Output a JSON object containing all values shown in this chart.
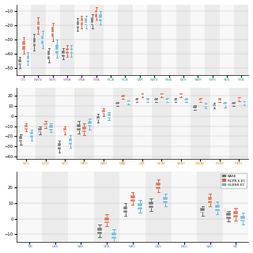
{
  "panel1": {
    "regions": [
      "GIC",
      "NWN",
      "NEN",
      "WNA",
      "CNA",
      "ENA",
      "NCA",
      "SCA",
      "CAR",
      "NWS",
      "NSA",
      "NES",
      "SAM",
      "SWS",
      "SES",
      "SSA"
    ],
    "ylim": [
      -55,
      -5
    ],
    "yticks": [
      -50.0,
      -40.0,
      -30.0,
      -20.0,
      -10.0
    ],
    "label_colors": [
      "#aa55cc",
      "#aa55cc",
      "#aa55cc",
      "#aa55cc",
      "#aa55cc",
      "#aa55cc",
      "#22aa88",
      "#22aa88",
      "#22aa88",
      "#22aa88",
      "#22aa88",
      "#22aa88",
      "#22aa88",
      "#22aa88",
      "#22aa88",
      "#22aa88"
    ],
    "base_stats": [
      [
        -48,
        -46,
        -44,
        -50,
        -42
      ],
      [
        -35,
        -32,
        -29,
        -38,
        -26
      ],
      [
        -44,
        -41,
        -38,
        -46,
        -36
      ],
      [
        -42,
        -40,
        -38,
        -44,
        -36
      ],
      [
        -22,
        -20,
        -17,
        -24,
        -15
      ],
      [
        -20,
        -18,
        -14,
        -22,
        -12
      ],
      null,
      null,
      null,
      null,
      null,
      null,
      null,
      null,
      null,
      null
    ],
    "rcp_stats": [
      [
        -37,
        -34,
        -31,
        -40,
        -28
      ],
      [
        -23,
        -20,
        -17,
        -26,
        -14
      ],
      [
        -28,
        -25,
        -21,
        -31,
        -18
      ],
      [
        -40,
        -38,
        -36,
        -42,
        -34
      ],
      [
        -20,
        -17,
        -15,
        -22,
        -13
      ],
      [
        -14,
        -11,
        -9,
        -16,
        -7
      ],
      null,
      null,
      null,
      null,
      null,
      null,
      null,
      null,
      null,
      null
    ],
    "glens_stats": [
      [
        -46,
        -44,
        -41,
        -48,
        -39
      ],
      [
        -33,
        -30,
        -27,
        -36,
        -24
      ],
      [
        -40,
        -37,
        -33,
        -43,
        -30
      ],
      [
        -40,
        -38,
        -36,
        -42,
        -34
      ],
      [
        -20,
        -18,
        -15,
        -22,
        -13
      ],
      [
        -17,
        -15,
        -12,
        -19,
        -10
      ],
      null,
      null,
      null,
      null,
      null,
      null,
      null,
      null,
      null,
      null
    ]
  },
  "panel2": {
    "regions": [
      "NEU",
      "WCE",
      "EEU",
      "MED",
      "SAH",
      "WAF",
      "CAF",
      "NEAF",
      "SEAF",
      "WSAF",
      "ESAF",
      "MDG"
    ],
    "ylim": [
      -42,
      28
    ],
    "yticks": [
      -40.0,
      -30.0,
      -20.0,
      -10.0,
      0.0,
      10.0,
      20.0
    ],
    "label_colors": [
      "#ff8800",
      "#ff8800",
      "#ff8800",
      "#ff8800",
      "#ff8800",
      "#ff8800",
      "#ff8800",
      "#ff8800",
      "#ff8800",
      "#ff8800",
      "#ff8800",
      "#ff8800"
    ],
    "base_stats": [
      [
        -25,
        -23,
        -20,
        -28,
        -18
      ],
      [
        -16,
        -14,
        -12,
        -18,
        -10
      ],
      [
        -33,
        -30,
        -27,
        -36,
        -24
      ],
      [
        -14,
        -11,
        -8,
        -17,
        -5
      ],
      [
        -4,
        -2,
        0,
        -6,
        2
      ],
      [
        11,
        12,
        13,
        10,
        14
      ],
      [
        15,
        16,
        17,
        14,
        18
      ],
      [
        15,
        16,
        17,
        14,
        18
      ],
      [
        15,
        16,
        17,
        14,
        18
      ],
      [
        7,
        8,
        10,
        6,
        11
      ],
      [
        9,
        10,
        12,
        8,
        13
      ],
      [
        11,
        12,
        13,
        10,
        14
      ]
    ],
    "rcp_stats": [
      [
        -13,
        -11,
        -9,
        -15,
        -7
      ],
      [
        -10,
        -9,
        -7,
        -12,
        -5
      ],
      [
        -16,
        -14,
        -12,
        -18,
        -10
      ],
      [
        -16,
        -13,
        -10,
        -19,
        -7
      ],
      [
        2,
        4,
        6,
        0,
        8
      ],
      [
        18,
        19,
        20,
        17,
        21
      ],
      [
        20,
        21,
        22,
        19,
        23
      ],
      [
        20,
        21,
        22,
        19,
        23
      ],
      [
        20,
        21,
        22,
        19,
        23
      ],
      [
        15,
        16,
        17,
        14,
        18
      ],
      [
        15,
        16,
        17,
        14,
        18
      ],
      [
        16,
        17,
        18,
        15,
        19
      ]
    ],
    "glens_stats": [
      [
        -21,
        -18,
        -16,
        -24,
        -13
      ],
      [
        -14,
        -12,
        -9,
        -16,
        -7
      ],
      [
        -28,
        -25,
        -22,
        -31,
        -19
      ],
      [
        -10,
        -8,
        -5,
        -13,
        -2
      ],
      [
        -2,
        0,
        2,
        -4,
        4
      ],
      [
        13,
        14,
        15,
        12,
        16
      ],
      [
        15,
        16,
        17,
        14,
        18
      ],
      [
        15,
        16,
        17,
        14,
        18
      ],
      [
        15,
        16,
        17,
        14,
        18
      ],
      [
        9,
        11,
        12,
        8,
        13
      ],
      [
        11,
        12,
        13,
        9,
        14
      ],
      [
        12,
        13,
        14,
        11,
        15
      ]
    ]
  },
  "panel3": {
    "regions": [
      "TIB",
      "EAS",
      "SAS",
      "SEA",
      "NAU",
      "CAU",
      "EAU",
      "SAU",
      "NZ"
    ],
    "ylim": [
      -15,
      30
    ],
    "yticks": [
      -10.0,
      0.0,
      10.0,
      20.0
    ],
    "label_colors": [
      "#4488ff",
      "#4488ff",
      "#4488ff",
      "#4488ff",
      "#4488ff",
      "#4488ff",
      "#4488ff",
      "#4488ff",
      "#4488ff"
    ],
    "base_stats": [
      null,
      null,
      null,
      [
        -10,
        -8,
        -6,
        -12,
        -4
      ],
      [
        4,
        6,
        8,
        2,
        10
      ],
      [
        7,
        9,
        11,
        5,
        13
      ],
      null,
      [
        4,
        5,
        7,
        2,
        8
      ],
      [
        0,
        2,
        4,
        -2,
        5
      ]
    ],
    "rcp_stats": [
      null,
      null,
      null,
      [
        -3,
        -1,
        1,
        -5,
        3
      ],
      [
        11,
        13,
        15,
        9,
        17
      ],
      [
        19,
        21,
        23,
        17,
        25
      ],
      null,
      [
        10,
        12,
        14,
        8,
        16
      ],
      [
        1,
        3,
        5,
        -1,
        7
      ]
    ],
    "glens_stats": [
      null,
      null,
      null,
      [
        -13,
        -11,
        -9,
        -15,
        -7
      ],
      [
        6,
        8,
        10,
        4,
        12
      ],
      [
        10,
        12,
        14,
        8,
        16
      ],
      null,
      [
        5,
        7,
        9,
        3,
        11
      ],
      [
        -2,
        0,
        2,
        -4,
        4
      ]
    ]
  },
  "colors": {
    "base": "#666666",
    "rcp": "#e8603c",
    "glens": "#6ab4d8",
    "bg_odd": "#ebebeb",
    "bg_even": "#f8f8f8"
  },
  "legend": {
    "labels": [
      "BASE",
      "RCP8.5 EC",
      "GLENS EC"
    ],
    "colors": [
      "#666666",
      "#e8603c",
      "#6ab4d8"
    ]
  }
}
